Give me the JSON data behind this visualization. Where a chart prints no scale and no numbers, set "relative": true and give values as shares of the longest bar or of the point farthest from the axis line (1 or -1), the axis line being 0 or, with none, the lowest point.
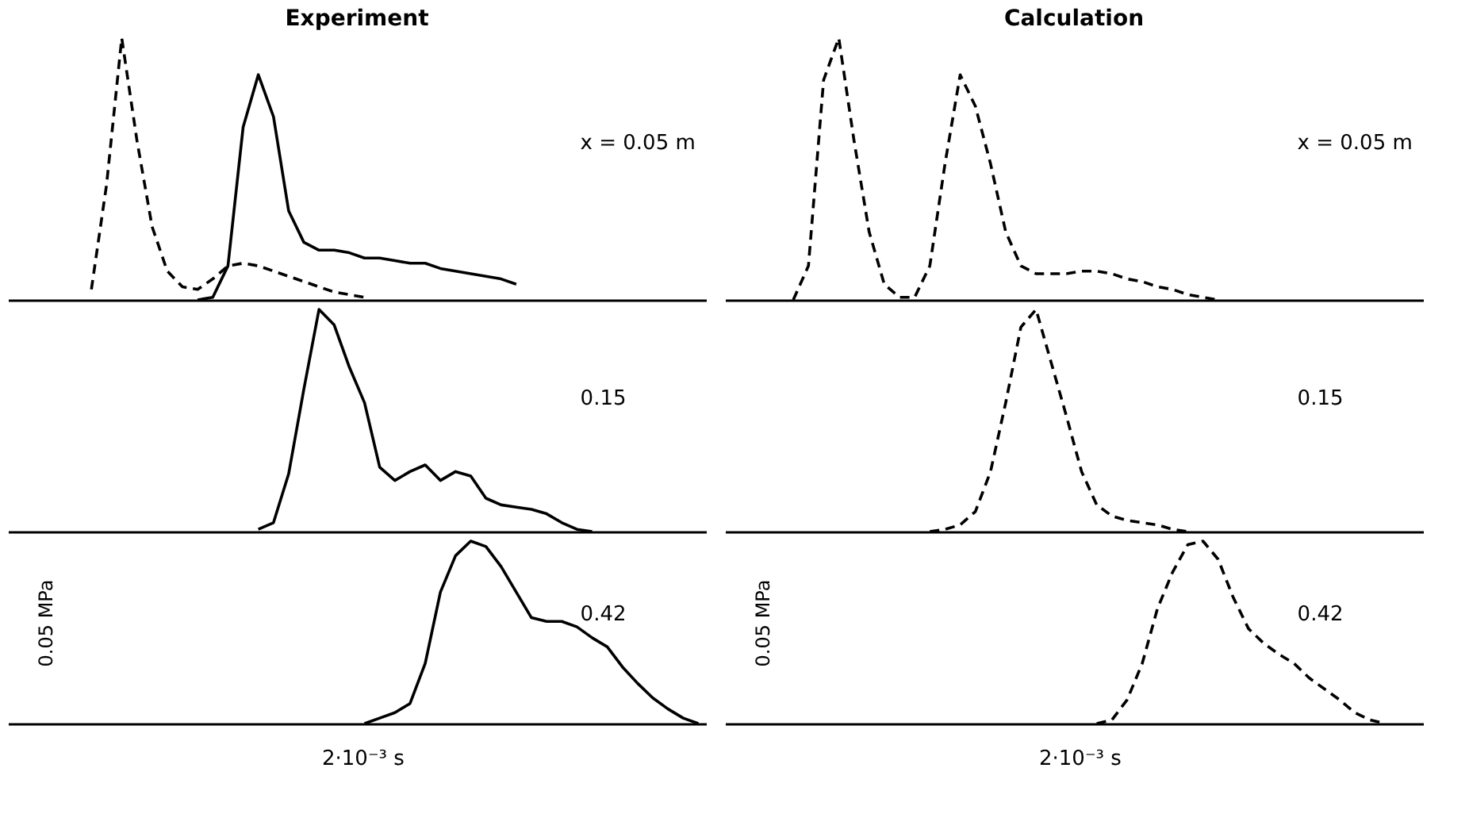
{
  "chart_data": [
    {
      "type": "line",
      "relative": true,
      "title": "Experiment",
      "categories": [
        null,
        null,
        null,
        null,
        null,
        null,
        null,
        null,
        null,
        null,
        null,
        null,
        null,
        null,
        null,
        null,
        null,
        null,
        null,
        null,
        null,
        null,
        null,
        null,
        null,
        null,
        null,
        null,
        null,
        null,
        null,
        null,
        null,
        null,
        null,
        null,
        null,
        null,
        null,
        null,
        null,
        null,
        null,
        null,
        null,
        null
      ],
      "series": [
        {
          "color": "#000000",
          "line_style": "dashed",
          "values": [
            null,
            null,
            null,
            null,
            null,
            0.04,
            0.44,
            1,
            0.61,
            0.28,
            0.11,
            0.05,
            0.04,
            0.08,
            0.13,
            0.14,
            0.13,
            0.11,
            0.09,
            0.07,
            0.05,
            0.03,
            0.02,
            0.01,
            null,
            null,
            null,
            null,
            null,
            null,
            null,
            null,
            null,
            null,
            null,
            null,
            null,
            null,
            null,
            null,
            null,
            null,
            null,
            null,
            null,
            null
          ]
        },
        {
          "color": "#000000",
          "line_style": "solid",
          "values": [
            null,
            null,
            null,
            null,
            null,
            null,
            null,
            null,
            null,
            null,
            null,
            null,
            0,
            0.01,
            0.13,
            0.66,
            0.86,
            0.7,
            0.34,
            0.22,
            0.19,
            0.19,
            0.18,
            0.16,
            0.16,
            0.15,
            0.14,
            0.14,
            0.12,
            0.11,
            0.1,
            0.09,
            0.08,
            0.06,
            null,
            null,
            null,
            null,
            null,
            null,
            null,
            null,
            null,
            null,
            null,
            null
          ]
        }
      ],
      "annotations": [
        "x = 0.05 m"
      ]
    },
    {
      "type": "line",
      "relative": true,
      "title": "Calculation",
      "categories": [
        null,
        null,
        null,
        null,
        null,
        null,
        null,
        null,
        null,
        null,
        null,
        null,
        null,
        null,
        null,
        null,
        null,
        null,
        null,
        null,
        null,
        null,
        null,
        null,
        null,
        null,
        null,
        null,
        null,
        null,
        null,
        null,
        null,
        null,
        null,
        null,
        null,
        null,
        null,
        null,
        null,
        null,
        null,
        null,
        null,
        null
      ],
      "series": [
        {
          "color": "#000000",
          "line_style": "dashed",
          "values": [
            null,
            null,
            null,
            null,
            0,
            0.13,
            0.84,
            1,
            0.61,
            0.26,
            0.06,
            0.01,
            0.01,
            0.13,
            0.52,
            0.86,
            0.74,
            0.52,
            0.26,
            0.13,
            0.1,
            0.1,
            0.1,
            0.11,
            0.11,
            0.1,
            0.08,
            0.07,
            0.05,
            0.04,
            0.02,
            0.01,
            0,
            null,
            null,
            null,
            null,
            null,
            null,
            null,
            null,
            null,
            null,
            null,
            null,
            null
          ]
        }
      ],
      "annotations": [
        "x = 0.05 m"
      ]
    },
    {
      "type": "line",
      "relative": true,
      "categories": [
        null,
        null,
        null,
        null,
        null,
        null,
        null,
        null,
        null,
        null,
        null,
        null,
        null,
        null,
        null,
        null,
        null,
        null,
        null,
        null,
        null,
        null,
        null,
        null,
        null,
        null,
        null,
        null,
        null,
        null,
        null,
        null,
        null,
        null,
        null,
        null,
        null,
        null,
        null,
        null,
        null,
        null,
        null,
        null,
        null,
        null
      ],
      "series": [
        {
          "color": "#000000",
          "line_style": "solid",
          "values": [
            null,
            null,
            null,
            null,
            null,
            null,
            null,
            null,
            null,
            null,
            null,
            null,
            null,
            null,
            null,
            null,
            0.01,
            0.04,
            0.26,
            0.64,
            1,
            0.93,
            0.74,
            0.58,
            0.29,
            0.23,
            0.27,
            0.3,
            0.23,
            0.27,
            0.25,
            0.15,
            0.12,
            0.11,
            0.1,
            0.08,
            0.04,
            0.01,
            0,
            null,
            null,
            null,
            null,
            null,
            null,
            null
          ]
        }
      ],
      "annotations": [
        "0.15"
      ]
    },
    {
      "type": "line",
      "relative": true,
      "categories": [
        null,
        null,
        null,
        null,
        null,
        null,
        null,
        null,
        null,
        null,
        null,
        null,
        null,
        null,
        null,
        null,
        null,
        null,
        null,
        null,
        null,
        null,
        null,
        null,
        null,
        null,
        null,
        null,
        null,
        null,
        null,
        null,
        null,
        null,
        null,
        null,
        null,
        null,
        null,
        null,
        null,
        null,
        null,
        null,
        null,
        null
      ],
      "series": [
        {
          "color": "#000000",
          "line_style": "dashed",
          "values": [
            null,
            null,
            null,
            null,
            null,
            null,
            null,
            null,
            null,
            null,
            null,
            null,
            null,
            0,
            0.01,
            0.03,
            0.09,
            0.27,
            0.58,
            0.92,
            1,
            0.76,
            0.52,
            0.27,
            0.12,
            0.07,
            0.05,
            0.04,
            0.03,
            0.01,
            0,
            null,
            null,
            null,
            null,
            null,
            null,
            null,
            null,
            null,
            null,
            null,
            null,
            null,
            null,
            null
          ]
        }
      ],
      "annotations": [
        "0.15"
      ]
    },
    {
      "type": "line",
      "relative": true,
      "categories": [
        null,
        null,
        null,
        null,
        null,
        null,
        null,
        null,
        null,
        null,
        null,
        null,
        null,
        null,
        null,
        null,
        null,
        null,
        null,
        null,
        null,
        null,
        null,
        null,
        null,
        null,
        null,
        null,
        null,
        null,
        null,
        null,
        null,
        null,
        null,
        null,
        null,
        null,
        null,
        null,
        null,
        null,
        null,
        null,
        null,
        null
      ],
      "series": [
        {
          "color": "#000000",
          "line_style": "solid",
          "values": [
            null,
            null,
            null,
            null,
            null,
            null,
            null,
            null,
            null,
            null,
            null,
            null,
            null,
            null,
            null,
            null,
            null,
            null,
            null,
            null,
            null,
            null,
            null,
            0,
            0.03,
            0.06,
            0.11,
            0.33,
            0.72,
            0.92,
            1,
            0.97,
            0.86,
            0.72,
            0.58,
            0.56,
            0.56,
            0.53,
            0.47,
            0.42,
            0.31,
            0.22,
            0.14,
            0.08,
            0.03,
            0
          ]
        }
      ],
      "annotations": [
        "0.42",
        "0.05 MPa",
        "2·10⁻³ s"
      ]
    },
    {
      "type": "line",
      "relative": true,
      "categories": [
        null,
        null,
        null,
        null,
        null,
        null,
        null,
        null,
        null,
        null,
        null,
        null,
        null,
        null,
        null,
        null,
        null,
        null,
        null,
        null,
        null,
        null,
        null,
        null,
        null,
        null,
        null,
        null,
        null,
        null,
        null,
        null,
        null,
        null,
        null,
        null,
        null,
        null,
        null,
        null,
        null,
        null,
        null,
        null,
        null,
        null
      ],
      "series": [
        {
          "color": "#000000",
          "line_style": "dashed",
          "values": [
            null,
            null,
            null,
            null,
            null,
            null,
            null,
            null,
            null,
            null,
            null,
            null,
            null,
            null,
            null,
            null,
            null,
            null,
            null,
            null,
            null,
            null,
            null,
            null,
            0,
            0.02,
            0.13,
            0.33,
            0.63,
            0.83,
            0.98,
            1,
            0.9,
            0.69,
            0.52,
            0.44,
            0.38,
            0.33,
            0.25,
            0.19,
            0.13,
            0.06,
            0.02,
            0,
            null,
            null
          ]
        }
      ],
      "annotations": [
        "0.42",
        "0.05 MPa",
        "2·10⁻³ s"
      ]
    }
  ]
}
